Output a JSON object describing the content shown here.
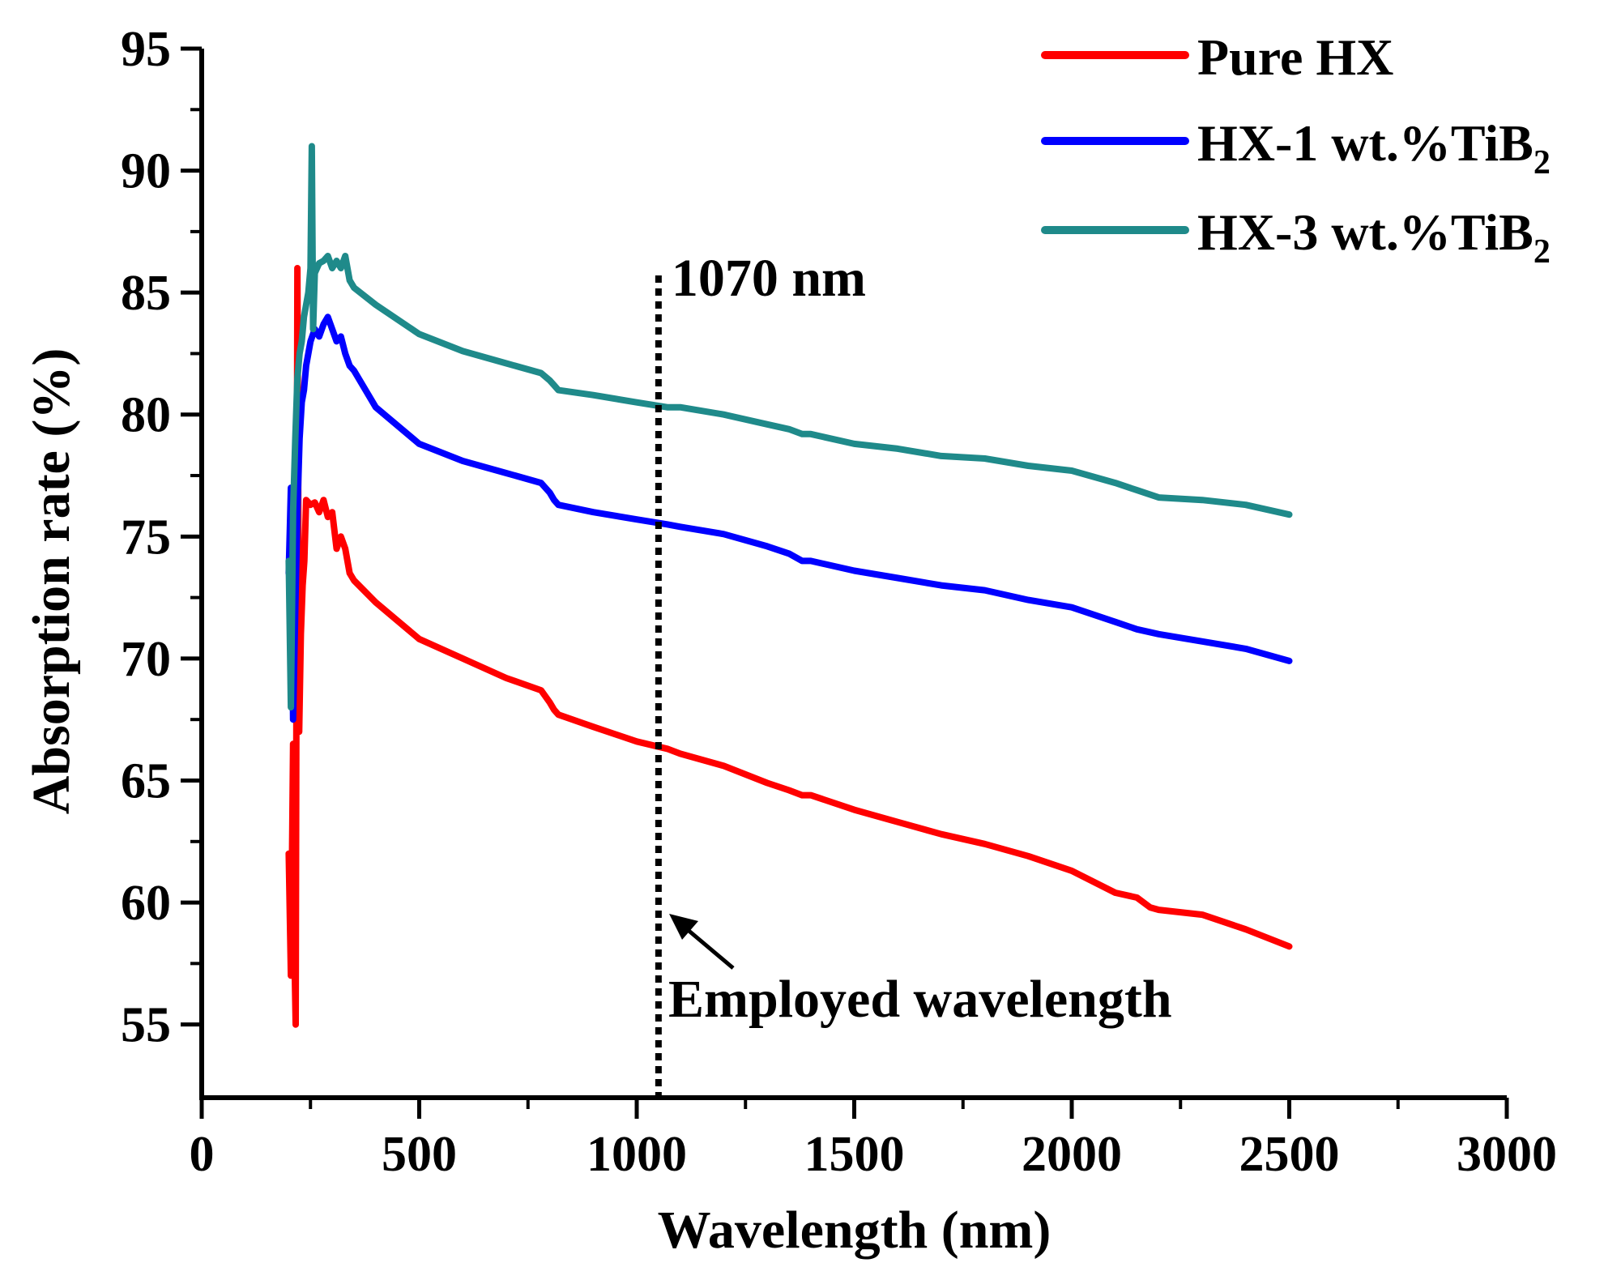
{
  "chart_data": {
    "type": "line",
    "xlabel": "Wavelength (nm)",
    "ylabel": "Absorption rate (%)",
    "xlim": [
      0,
      3000
    ],
    "ylim": [
      52,
      95
    ],
    "xticks": [
      "0",
      "500",
      "1000",
      "1500",
      "2000",
      "2500",
      "3000"
    ],
    "yticks": [
      "55",
      "60",
      "65",
      "70",
      "75",
      "80",
      "85",
      "90",
      "95"
    ],
    "grid": false,
    "legend_position": "top-right",
    "series": [
      {
        "name": "Pure HX",
        "legend_main": "Pure HX",
        "legend_sub": "",
        "color": "#ff0000",
        "x": [
          200,
          205,
          210,
          213,
          216,
          220,
          224,
          228,
          232,
          236,
          240,
          250,
          260,
          270,
          280,
          290,
          300,
          310,
          320,
          330,
          340,
          350,
          400,
          500,
          600,
          700,
          780,
          800,
          810,
          820,
          900,
          1000,
          1070,
          1100,
          1200,
          1300,
          1350,
          1380,
          1400,
          1500,
          1600,
          1700,
          1800,
          1900,
          2000,
          2100,
          2150,
          2180,
          2200,
          2300,
          2400,
          2500
        ],
        "y": [
          62,
          57,
          66.5,
          58,
          55,
          86,
          67,
          71,
          73,
          74,
          76.5,
          76.3,
          76.4,
          76,
          76.5,
          75.8,
          76,
          74.5,
          75,
          74.5,
          73.5,
          73.2,
          72.3,
          70.8,
          70,
          69.2,
          68.7,
          68.2,
          67.9,
          67.7,
          67.2,
          66.6,
          66.3,
          66.1,
          65.6,
          64.9,
          64.6,
          64.4,
          64.4,
          63.8,
          63.3,
          62.8,
          62.4,
          61.9,
          61.3,
          60.4,
          60.2,
          59.8,
          59.7,
          59.5,
          58.9,
          58.2
        ]
      },
      {
        "name": "HX-1 wt.%TiB2",
        "legend_main": "HX-1 wt.%TiB",
        "legend_sub": "2",
        "color": "#0000ff",
        "x": [
          200,
          205,
          210,
          215,
          220,
          225,
          230,
          235,
          240,
          250,
          260,
          270,
          280,
          290,
          300,
          310,
          320,
          330,
          340,
          350,
          400,
          500,
          600,
          700,
          780,
          800,
          810,
          820,
          900,
          1000,
          1070,
          1100,
          1200,
          1300,
          1350,
          1380,
          1400,
          1500,
          1600,
          1700,
          1800,
          1900,
          2000,
          2100,
          2150,
          2200,
          2300,
          2400,
          2500
        ],
        "y": [
          73.5,
          77,
          67.5,
          72,
          76,
          79,
          80.5,
          81,
          82,
          83,
          83.5,
          83.2,
          83.7,
          84,
          83.5,
          83,
          83.2,
          82.5,
          82,
          81.8,
          80.3,
          78.8,
          78.1,
          77.6,
          77.2,
          76.8,
          76.5,
          76.3,
          76,
          75.7,
          75.5,
          75.4,
          75.1,
          74.6,
          74.3,
          74,
          74,
          73.6,
          73.3,
          73,
          72.8,
          72.4,
          72.1,
          71.5,
          71.2,
          71,
          70.7,
          70.4,
          69.9
        ]
      },
      {
        "name": "HX-3 wt.%TiB2",
        "legend_main": "HX-3 wt.%TiB",
        "legend_sub": "2",
        "color": "#1f8a8a",
        "x": [
          200,
          205,
          210,
          215,
          220,
          225,
          230,
          235,
          240,
          245,
          250,
          253,
          256,
          260,
          270,
          280,
          290,
          300,
          310,
          320,
          330,
          340,
          350,
          400,
          500,
          600,
          700,
          780,
          800,
          810,
          820,
          900,
          1000,
          1070,
          1100,
          1200,
          1300,
          1350,
          1380,
          1400,
          1500,
          1600,
          1700,
          1800,
          1900,
          2000,
          2100,
          2150,
          2200,
          2300,
          2400,
          2500
        ],
        "y": [
          74,
          68,
          76,
          79,
          81.5,
          82.5,
          83,
          84,
          84.5,
          85,
          86,
          91,
          83.5,
          85.8,
          86.2,
          86.3,
          86.5,
          86,
          86.3,
          86,
          86.5,
          85.5,
          85.2,
          84.5,
          83.3,
          82.6,
          82.1,
          81.7,
          81.4,
          81.2,
          81,
          80.8,
          80.5,
          80.3,
          80.3,
          80,
          79.6,
          79.4,
          79.2,
          79.2,
          78.8,
          78.6,
          78.3,
          78.2,
          77.9,
          77.7,
          77.2,
          76.9,
          76.6,
          76.5,
          76.3,
          75.9
        ]
      }
    ],
    "annotations": {
      "line_x": 1050,
      "line_label": "1070 nm",
      "arrow_label": "Employed wavelength"
    }
  }
}
